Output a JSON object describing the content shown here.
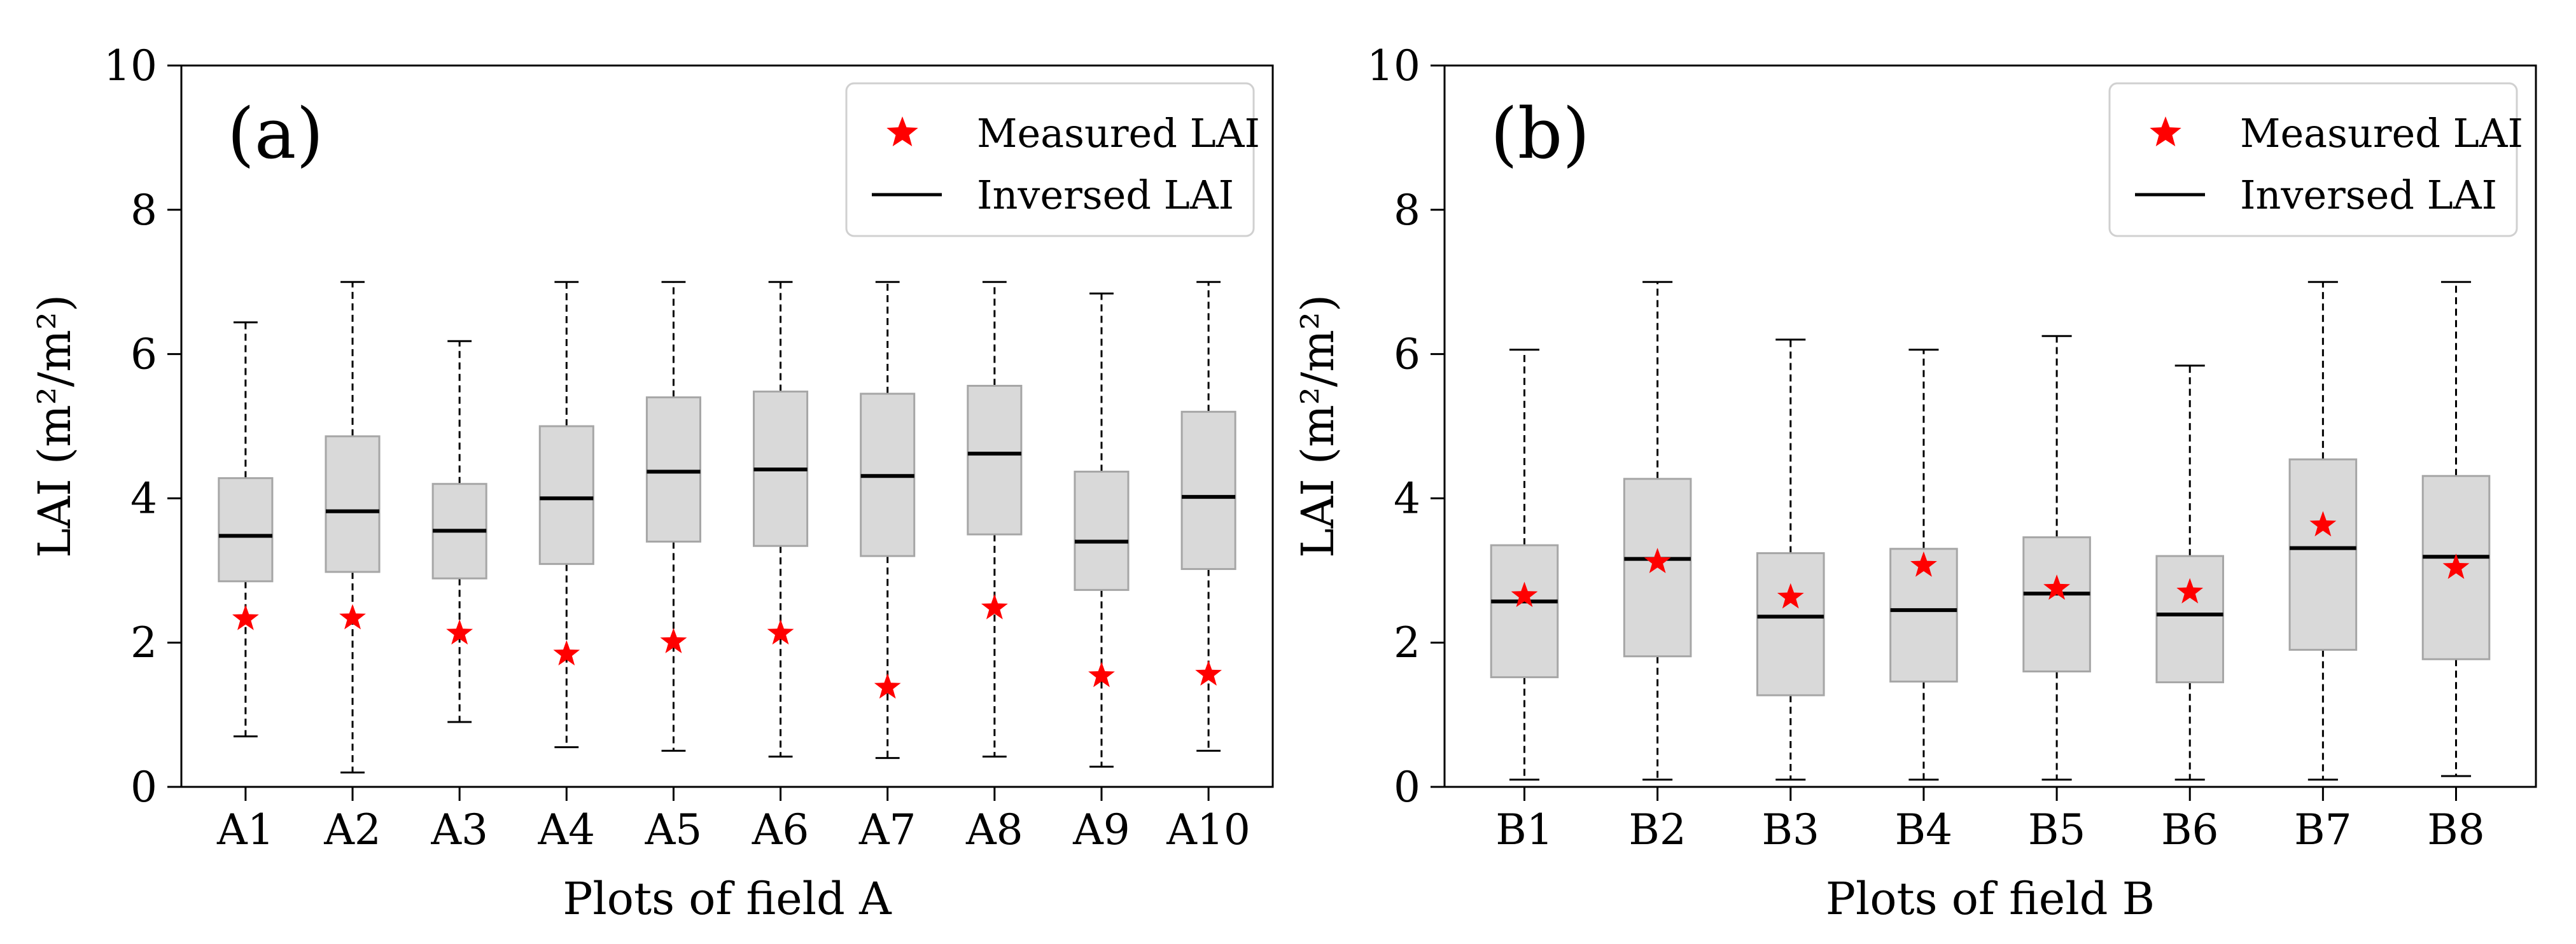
{
  "colors": {
    "box_fill": "#d9d9d9",
    "box_edge": "#a6a6a6",
    "median": "#000000",
    "whisker": "#000000",
    "marker": "#ff0000",
    "axis": "#000000"
  },
  "chart_data": [
    {
      "type": "box",
      "panel_label": "(a)",
      "title": "",
      "xlabel": "Plots of field A",
      "ylabel": "LAI (m²/m²)",
      "ylim": [
        0,
        10
      ],
      "yticks": [
        0,
        2,
        4,
        6,
        8,
        10
      ],
      "legend": {
        "position": "top-right",
        "measured_label": "Measured LAI",
        "inversed_label": "Inversed LAI"
      },
      "categories": [
        "A1",
        "A2",
        "A3",
        "A4",
        "A5",
        "A6",
        "A7",
        "A8",
        "A9",
        "A10"
      ],
      "boxes": [
        {
          "min": 0.7,
          "q1": 2.85,
          "median": 3.48,
          "q3": 4.28,
          "max": 6.44
        },
        {
          "min": 0.2,
          "q1": 2.98,
          "median": 3.82,
          "q3": 4.86,
          "max": 7.0
        },
        {
          "min": 0.9,
          "q1": 2.89,
          "median": 3.55,
          "q3": 4.2,
          "max": 6.18
        },
        {
          "min": 0.55,
          "q1": 3.09,
          "median": 4.0,
          "q3": 5.0,
          "max": 7.0
        },
        {
          "min": 0.5,
          "q1": 3.4,
          "median": 4.37,
          "q3": 5.4,
          "max": 7.0
        },
        {
          "min": 0.42,
          "q1": 3.34,
          "median": 4.4,
          "q3": 5.48,
          "max": 7.0
        },
        {
          "min": 0.4,
          "q1": 3.2,
          "median": 4.31,
          "q3": 5.45,
          "max": 7.0
        },
        {
          "min": 0.42,
          "q1": 3.5,
          "median": 4.62,
          "q3": 5.56,
          "max": 7.0
        },
        {
          "min": 0.28,
          "q1": 2.73,
          "median": 3.4,
          "q3": 4.37,
          "max": 6.84
        },
        {
          "min": 0.5,
          "q1": 3.02,
          "median": 4.02,
          "q3": 5.2,
          "max": 7.0
        }
      ],
      "measured": [
        2.33,
        2.34,
        2.13,
        1.84,
        2.01,
        2.13,
        1.38,
        2.48,
        1.54,
        1.56
      ]
    },
    {
      "type": "box",
      "panel_label": "(b)",
      "title": "",
      "xlabel": "Plots of field B",
      "ylabel": "LAI (m²/m²)",
      "ylim": [
        0,
        10
      ],
      "yticks": [
        0,
        2,
        4,
        6,
        8,
        10
      ],
      "legend": {
        "position": "top-right",
        "measured_label": "Measured LAI",
        "inversed_label": "Inversed LAI"
      },
      "categories": [
        "B1",
        "B2",
        "B3",
        "B4",
        "B5",
        "B6",
        "B7",
        "B8"
      ],
      "boxes": [
        {
          "min": 0.1,
          "q1": 1.52,
          "median": 2.57,
          "q3": 3.35,
          "max": 6.06
        },
        {
          "min": 0.1,
          "q1": 1.81,
          "median": 3.16,
          "q3": 4.27,
          "max": 7.0
        },
        {
          "min": 0.1,
          "q1": 1.27,
          "median": 2.36,
          "q3": 3.24,
          "max": 6.2
        },
        {
          "min": 0.1,
          "q1": 1.46,
          "median": 2.45,
          "q3": 3.3,
          "max": 6.06
        },
        {
          "min": 0.1,
          "q1": 1.6,
          "median": 2.68,
          "q3": 3.46,
          "max": 6.25
        },
        {
          "min": 0.1,
          "q1": 1.45,
          "median": 2.39,
          "q3": 3.2,
          "max": 5.84
        },
        {
          "min": 0.1,
          "q1": 1.9,
          "median": 3.31,
          "q3": 4.54,
          "max": 7.0
        },
        {
          "min": 0.15,
          "q1": 1.77,
          "median": 3.19,
          "q3": 4.31,
          "max": 7.0
        }
      ],
      "measured": [
        2.65,
        3.12,
        2.63,
        3.07,
        2.75,
        2.7,
        3.63,
        3.04
      ]
    }
  ]
}
